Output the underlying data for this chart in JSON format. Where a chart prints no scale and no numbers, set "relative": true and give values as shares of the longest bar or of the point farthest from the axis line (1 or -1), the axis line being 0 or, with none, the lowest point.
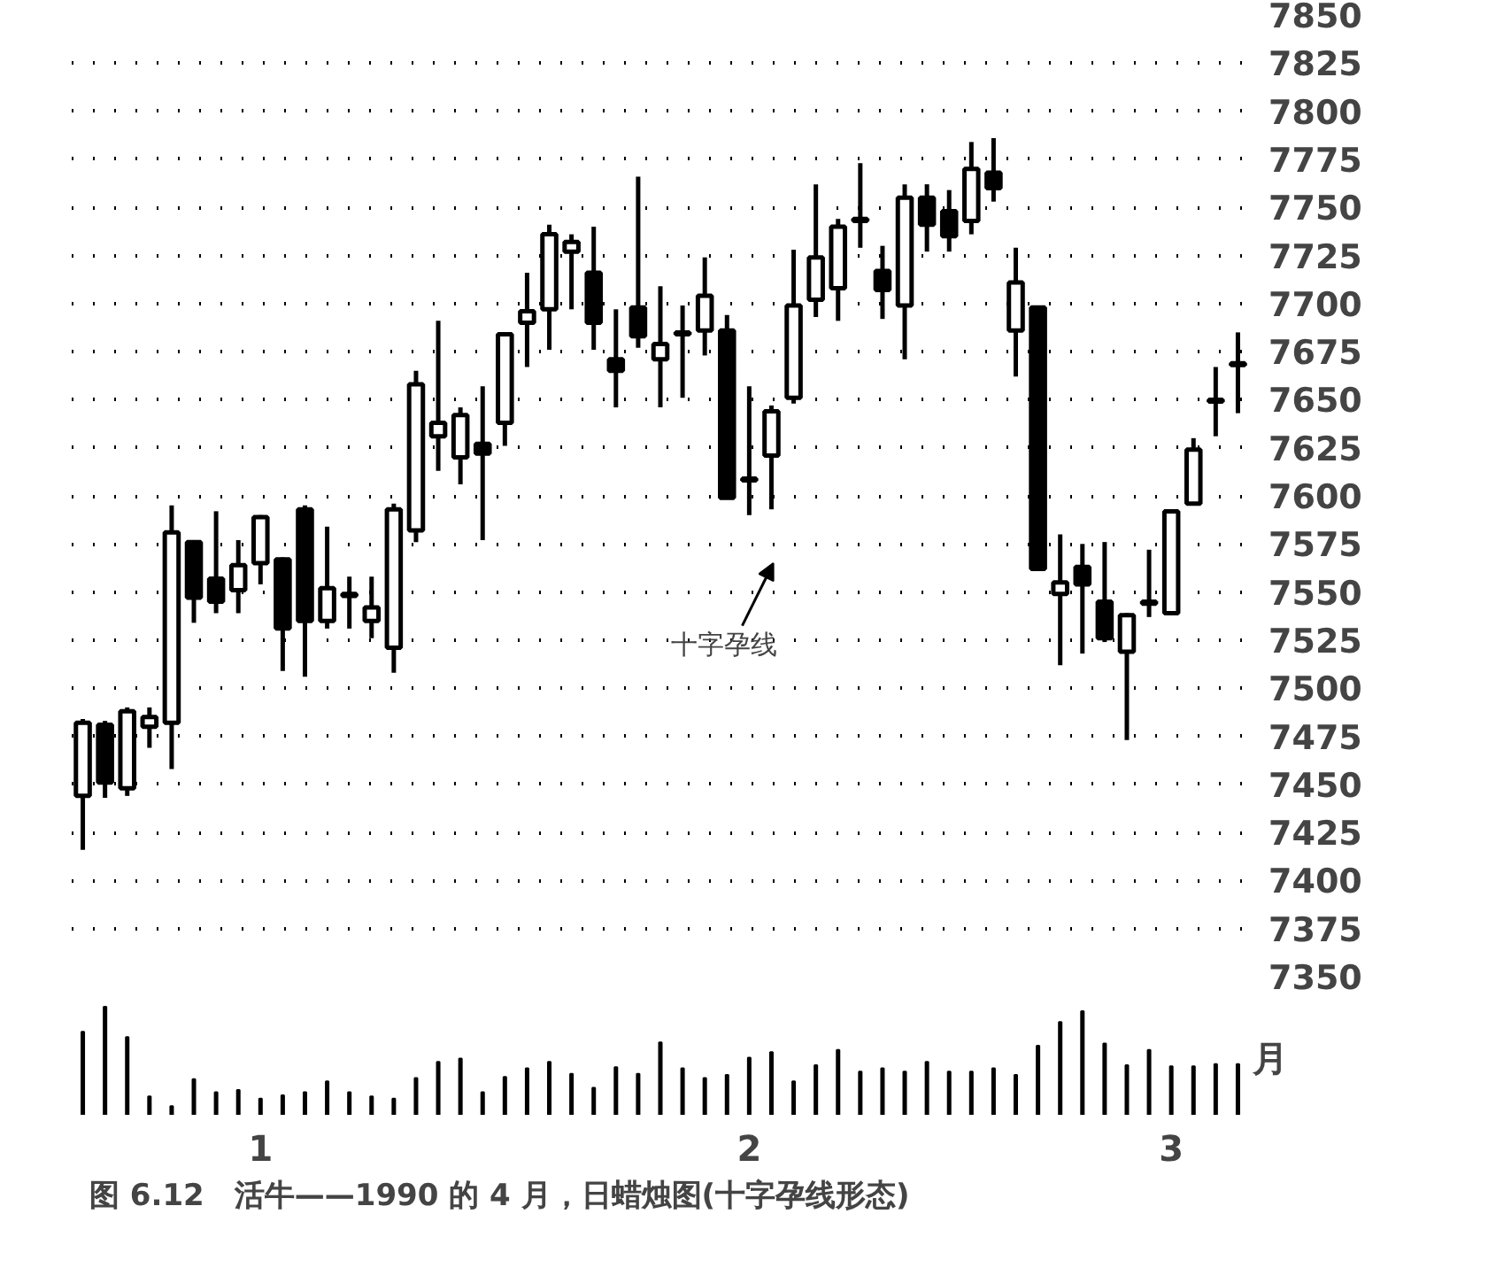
{
  "chart_data": [
    {
      "type": "candlestick",
      "color": "#000000",
      "categories": [
        null,
        null,
        null,
        null,
        null,
        null,
        null,
        null,
        "1",
        null,
        null,
        null,
        null,
        null,
        null,
        null,
        null,
        null,
        null,
        null,
        null,
        null,
        null,
        null,
        null,
        null,
        null,
        null,
        null,
        null,
        "2",
        null,
        null,
        null,
        null,
        null,
        null,
        null,
        null,
        null,
        null,
        null,
        null,
        null,
        null,
        null,
        null,
        null,
        null,
        "3",
        null,
        null,
        null
      ],
      "ohlc": [
        [
          7444,
          7484,
          7416,
          7482
        ],
        [
          7481,
          7483,
          7443,
          7451
        ],
        [
          7448,
          7490,
          7444,
          7488
        ],
        [
          7480,
          7490,
          7469,
          7485
        ],
        [
          7482,
          7595,
          7458,
          7581
        ],
        [
          7576,
          7577,
          7534,
          7547
        ],
        [
          7557,
          7592,
          7539,
          7545
        ],
        [
          7551,
          7577,
          7539,
          7564
        ],
        [
          7565,
          7590,
          7554,
          7589
        ],
        [
          7567,
          7568,
          7509,
          7531
        ],
        [
          7593,
          7595,
          7506,
          7535
        ],
        [
          7535,
          7584,
          7531,
          7552
        ],
        [
          7548,
          7558,
          7531,
          7549
        ],
        [
          7535,
          7558,
          7526,
          7542
        ],
        [
          7521,
          7596,
          7508,
          7593
        ],
        [
          7582,
          7665,
          7576,
          7658
        ],
        [
          7631,
          7691,
          7613,
          7638
        ],
        [
          7620,
          7646,
          7606,
          7642
        ],
        [
          7627,
          7657,
          7577,
          7622
        ],
        [
          7638,
          7685,
          7626,
          7684
        ],
        [
          7690,
          7716,
          7667,
          7696
        ],
        [
          7697,
          7741,
          7676,
          7736
        ],
        [
          7727,
          7736,
          7697,
          7732
        ],
        [
          7716,
          7740,
          7676,
          7690
        ],
        [
          7671,
          7697,
          7646,
          7665
        ],
        [
          7698,
          7766,
          7677,
          7683
        ],
        [
          7671,
          7709,
          7646,
          7679
        ],
        [
          7684,
          7699,
          7651,
          7685
        ],
        [
          7686,
          7724,
          7673,
          7704
        ],
        [
          7686,
          7694,
          7599,
          7599
        ],
        [
          7608,
          7657,
          7590,
          7609
        ],
        [
          7621,
          7647,
          7593,
          7644
        ],
        [
          7651,
          7728,
          7648,
          7699
        ],
        [
          7702,
          7762,
          7693,
          7724
        ],
        [
          7708,
          7744,
          7691,
          7740
        ],
        [
          7743,
          7773,
          7729,
          7744
        ],
        [
          7717,
          7730,
          7692,
          7707
        ],
        [
          7699,
          7762,
          7671,
          7755
        ],
        [
          7755,
          7762,
          7727,
          7741
        ],
        [
          7748,
          7759,
          7727,
          7735
        ],
        [
          7743,
          7784,
          7736,
          7770
        ],
        [
          7768,
          7786,
          7753,
          7760
        ],
        [
          7686,
          7729,
          7662,
          7711
        ],
        [
          7698,
          7698,
          7562,
          7562
        ],
        [
          7549,
          7580,
          7512,
          7555
        ],
        [
          7563,
          7575,
          7518,
          7554
        ],
        [
          7545,
          7576,
          7524,
          7526
        ],
        [
          7519,
          7539,
          7473,
          7538
        ],
        [
          7544,
          7572,
          7537,
          7545
        ],
        [
          7539,
          7593,
          7539,
          7592
        ],
        [
          7596,
          7630,
          7596,
          7624
        ],
        [
          7649,
          7667,
          7631,
          7650
        ],
        [
          7668,
          7685,
          7643,
          7669
        ]
      ],
      "ylim": [
        7350,
        7850
      ],
      "yticks": [
        7350,
        7375,
        7400,
        7425,
        7450,
        7475,
        7500,
        7525,
        7550,
        7575,
        7600,
        7625,
        7650,
        7675,
        7700,
        7725,
        7750,
        7775,
        7800,
        7825,
        7850
      ],
      "grid": "y",
      "tick_labels": "y",
      "annotations": [
        "十字孕线"
      ]
    },
    {
      "type": "bar",
      "relative": true,
      "color": "#000000",
      "title": "图 6.12　活牛——1990 的 4 月，日蜡烛图(十字孕线形态)",
      "xlabel": "月",
      "categories": [
        null,
        null,
        null,
        null,
        null,
        null,
        null,
        null,
        "1",
        null,
        null,
        null,
        null,
        null,
        null,
        null,
        null,
        null,
        null,
        null,
        null,
        null,
        null,
        null,
        null,
        null,
        null,
        null,
        null,
        null,
        "2",
        null,
        null,
        null,
        null,
        null,
        null,
        null,
        null,
        null,
        null,
        null,
        null,
        null,
        null,
        null,
        null,
        null,
        null,
        "3",
        null,
        null,
        null
      ],
      "values": [
        0.77,
        1,
        0.72,
        0.17,
        0.08,
        0.33,
        0.21,
        0.23,
        0.15,
        0.18,
        0.21,
        0.31,
        0.21,
        0.17,
        0.15,
        0.34,
        0.49,
        0.52,
        0.21,
        0.35,
        0.43,
        0.49,
        0.38,
        0.25,
        0.44,
        0.38,
        0.67,
        0.43,
        0.34,
        0.37,
        0.53,
        0.58,
        0.31,
        0.46,
        0.6,
        0.4,
        0.43,
        0.4,
        0.49,
        0.4,
        0.4,
        0.43,
        0.37,
        0.64,
        0.86,
        0.96,
        0.66,
        0.46,
        0.6,
        0.45,
        0.45,
        0.47,
        0.47
      ],
      "grid": false
    }
  ]
}
